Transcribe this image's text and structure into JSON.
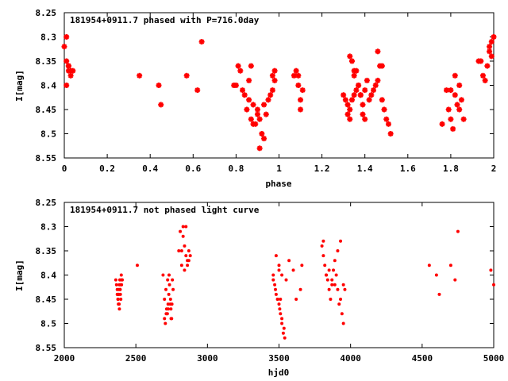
{
  "colors": {
    "points": "#ff0000",
    "frame": "#000000",
    "background": "#ffffff"
  },
  "chart_data": [
    {
      "type": "scatter",
      "title": "181954+0911.7 phased with P=716.0day",
      "xlabel": "phase",
      "ylabel": "I[mag]",
      "xlim": [
        0,
        2
      ],
      "ylim": [
        8.55,
        8.25
      ],
      "y_inverted": true,
      "x_ticks": [
        "0",
        "0.2",
        "0.4",
        "0.6",
        "0.8",
        "1",
        "1.2",
        "1.4",
        "1.6",
        "1.8",
        "2"
      ],
      "y_ticks": [
        "8.25",
        "8.3",
        "8.35",
        "8.4",
        "8.45",
        "8.5",
        "8.55"
      ],
      "grid": false,
      "marker": "star",
      "series": [
        {
          "x": [
            0.0,
            0.01,
            0.02,
            0.01,
            0.02,
            0.03,
            0.02,
            0.04,
            0.03,
            0.01,
            0.02,
            0.35,
            0.44,
            0.45,
            0.57,
            0.62,
            0.64,
            0.79,
            0.8,
            0.81,
            0.82,
            0.83,
            0.85,
            0.86,
            0.87,
            0.87,
            0.88,
            0.89,
            0.9,
            0.91,
            0.92,
            0.93,
            0.94,
            0.95,
            0.96,
            0.97,
            0.98,
            0.88,
            0.9,
            0.91,
            0.93,
            0.86,
            0.84,
            0.97,
            0.98,
            1.07,
            1.08,
            1.09,
            1.1,
            1.11,
            1.1,
            1.09,
            1.3,
            1.31,
            1.32,
            1.33,
            1.34,
            1.35,
            1.36,
            1.37,
            1.38,
            1.39,
            1.4,
            1.41,
            1.33,
            1.34,
            1.35,
            1.36,
            1.32,
            1.33,
            1.38,
            1.39,
            1.42,
            1.43,
            1.44,
            1.45,
            1.46,
            1.47,
            1.48,
            1.49,
            1.5,
            1.51,
            1.52,
            1.46,
            1.48,
            1.35,
            1.37,
            1.4,
            1.76,
            1.78,
            1.79,
            1.8,
            1.81,
            1.82,
            1.83,
            1.84,
            1.85,
            1.86,
            1.8,
            1.82,
            1.84,
            1.93,
            1.94,
            1.95,
            1.96,
            1.97,
            1.98,
            1.99,
            2.0,
            1.99,
            1.98
          ],
          "y": [
            8.32,
            8.3,
            8.36,
            8.4,
            8.37,
            8.38,
            8.36,
            8.37,
            8.37,
            8.35,
            8.36,
            8.38,
            8.4,
            8.44,
            8.38,
            8.41,
            8.31,
            8.4,
            8.4,
            8.36,
            8.37,
            8.41,
            8.45,
            8.43,
            8.36,
            8.47,
            8.48,
            8.48,
            8.45,
            8.53,
            8.5,
            8.51,
            8.46,
            8.43,
            8.42,
            8.38,
            8.37,
            8.44,
            8.46,
            8.47,
            8.44,
            8.39,
            8.42,
            8.41,
            8.39,
            8.38,
            8.37,
            8.38,
            8.43,
            8.41,
            8.45,
            8.4,
            8.42,
            8.43,
            8.44,
            8.45,
            8.43,
            8.42,
            8.41,
            8.4,
            8.42,
            8.44,
            8.41,
            8.39,
            8.34,
            8.35,
            8.38,
            8.37,
            8.46,
            8.47,
            8.42,
            8.46,
            8.43,
            8.42,
            8.41,
            8.4,
            8.33,
            8.36,
            8.43,
            8.45,
            8.47,
            8.48,
            8.5,
            8.39,
            8.36,
            8.37,
            8.4,
            8.47,
            8.48,
            8.41,
            8.45,
            8.47,
            8.49,
            8.42,
            8.44,
            8.45,
            8.43,
            8.47,
            8.41,
            8.38,
            8.4,
            8.35,
            8.35,
            8.38,
            8.39,
            8.36,
            8.33,
            8.31,
            8.3,
            8.34,
            8.32
          ]
        }
      ]
    },
    {
      "type": "scatter",
      "title": "181954+0911.7 not phased light curve",
      "xlabel": "hjd0",
      "ylabel": "I[mag]",
      "xlim": [
        2000,
        5000
      ],
      "ylim": [
        8.55,
        8.25
      ],
      "y_inverted": true,
      "x_ticks": [
        "2000",
        "2500",
        "3000",
        "3500",
        "4000",
        "4500",
        "5000"
      ],
      "y_ticks": [
        "8.25",
        "8.3",
        "8.35",
        "8.4",
        "8.45",
        "8.5",
        "8.55"
      ],
      "grid": false,
      "marker": "dot",
      "series": [
        {
          "x": [
            2360,
            2365,
            2370,
            2372,
            2375,
            2378,
            2380,
            2382,
            2385,
            2388,
            2390,
            2392,
            2395,
            2398,
            2400,
            2370,
            2375,
            2380,
            2385,
            2390,
            2395,
            2400,
            2405,
            2378,
            2383,
            2510,
            2690,
            2700,
            2710,
            2715,
            2720,
            2725,
            2730,
            2735,
            2740,
            2745,
            2750,
            2755,
            2760,
            2700,
            2712,
            2722,
            2732,
            2742,
            2752,
            2706,
            2726,
            2746,
            2800,
            2810,
            2820,
            2830,
            2840,
            2850,
            2860,
            2870,
            2880,
            2830,
            2850,
            2860,
            2870,
            2820,
            2840,
            3460,
            3470,
            3480,
            3490,
            3500,
            3510,
            3520,
            3530,
            3540,
            3460,
            3475,
            3490,
            3505,
            3520,
            3535,
            3480,
            3500,
            3520,
            3550,
            3570,
            3600,
            3620,
            3650,
            3660,
            3500,
            3510,
            3800,
            3810,
            3820,
            3830,
            3840,
            3850,
            3860,
            3870,
            3880,
            3890,
            3900,
            3910,
            3920,
            3930,
            3940,
            3950,
            3960,
            3810,
            3830,
            3850,
            3870,
            3890,
            3910,
            3930,
            3950,
            4550,
            4600,
            4620,
            4700,
            4730,
            4750,
            4980,
            5000
          ],
          "y": [
            8.41,
            8.42,
            8.43,
            8.44,
            8.45,
            8.46,
            8.43,
            8.44,
            8.42,
            8.41,
            8.43,
            8.44,
            8.42,
            8.4,
            8.41,
            8.44,
            8.45,
            8.46,
            8.47,
            8.43,
            8.45,
            8.42,
            8.41,
            8.44,
            8.46,
            8.38,
            8.4,
            8.45,
            8.43,
            8.47,
            8.48,
            8.46,
            8.44,
            8.42,
            8.46,
            8.47,
            8.49,
            8.41,
            8.43,
            8.49,
            8.48,
            8.41,
            8.4,
            8.45,
            8.46,
            8.5,
            8.47,
            8.49,
            8.35,
            8.31,
            8.35,
            8.32,
            8.34,
            8.36,
            8.38,
            8.35,
            8.36,
            8.3,
            8.3,
            8.37,
            8.37,
            8.38,
            8.39,
            8.4,
            8.42,
            8.44,
            8.45,
            8.46,
            8.48,
            8.5,
            8.52,
            8.53,
            8.41,
            8.43,
            8.45,
            8.47,
            8.49,
            8.51,
            8.36,
            8.38,
            8.4,
            8.41,
            8.37,
            8.39,
            8.45,
            8.43,
            8.38,
            8.39,
            8.45,
            8.34,
            8.36,
            8.38,
            8.4,
            8.41,
            8.43,
            8.45,
            8.42,
            8.39,
            8.42,
            8.4,
            8.43,
            8.46,
            8.45,
            8.48,
            8.5,
            8.43,
            8.33,
            8.4,
            8.39,
            8.41,
            8.37,
            8.35,
            8.33,
            8.42,
            8.38,
            8.4,
            8.44,
            8.38,
            8.41,
            8.31,
            8.39,
            8.42
          ]
        }
      ]
    }
  ]
}
